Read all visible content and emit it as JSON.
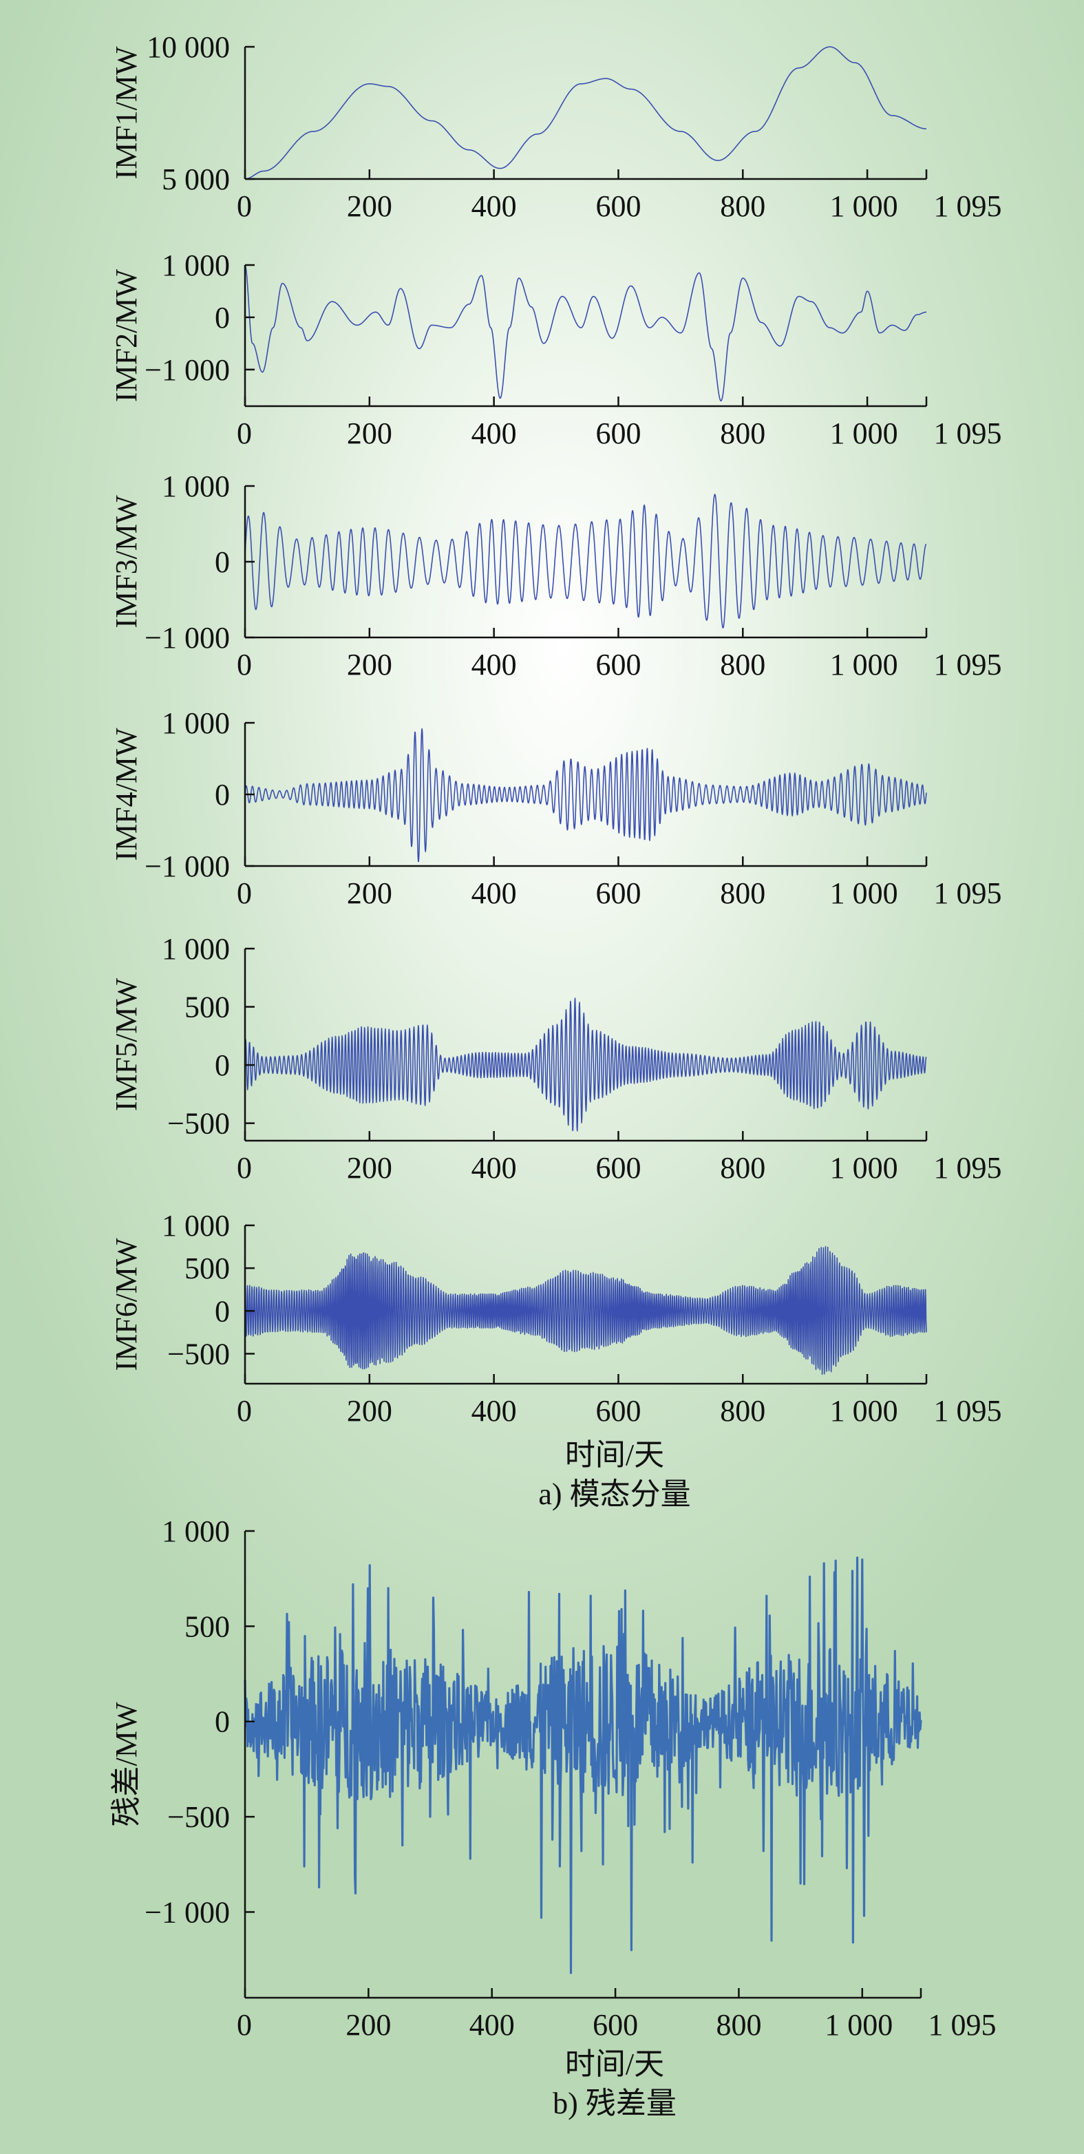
{
  "figure": {
    "xlabel_a": "时间/天",
    "caption_a": "a) 模态分量",
    "xlabel_b": "时间/天",
    "caption_b": "b) 残差量",
    "series_color_a": "#3a4fb0",
    "series_color_b": "#3d6fb5",
    "axis_color": "#111111"
  },
  "chart_data": [
    {
      "type": "line",
      "panel": "a",
      "ylabel": "IMF1/MW",
      "xlim": [
        0,
        1095
      ],
      "ylim": [
        5000,
        10000
      ],
      "xticks": [
        0,
        200,
        400,
        600,
        800,
        1000,
        1095
      ],
      "xtick_labels": [
        "0",
        "200",
        "400",
        "600",
        "800",
        "1 000",
        "1 095"
      ],
      "yticks": [
        5000,
        10000
      ],
      "ytick_labels": [
        "5 000",
        "10 000"
      ],
      "signal": {
        "kind": "keypoints",
        "points": [
          [
            0,
            5000
          ],
          [
            30,
            5300
          ],
          [
            110,
            6800
          ],
          [
            200,
            8600
          ],
          [
            230,
            8500
          ],
          [
            300,
            7200
          ],
          [
            360,
            6100
          ],
          [
            410,
            5400
          ],
          [
            470,
            6700
          ],
          [
            540,
            8600
          ],
          [
            580,
            8800
          ],
          [
            620,
            8400
          ],
          [
            700,
            6800
          ],
          [
            760,
            5700
          ],
          [
            820,
            6800
          ],
          [
            890,
            9200
          ],
          [
            940,
            10000
          ],
          [
            980,
            9400
          ],
          [
            1040,
            7400
          ],
          [
            1095,
            6900
          ]
        ]
      }
    },
    {
      "type": "line",
      "panel": "a",
      "ylabel": "IMF2/MW",
      "xlim": [
        0,
        1095
      ],
      "ylim": [
        -1700,
        1000
      ],
      "xticks": [
        0,
        200,
        400,
        600,
        800,
        1000,
        1095
      ],
      "xtick_labels": [
        "0",
        "200",
        "400",
        "600",
        "800",
        "1 000",
        "1 095"
      ],
      "yticks": [
        -1000,
        0,
        1000
      ],
      "ytick_labels": [
        "−1 000",
        "0",
        "1 000"
      ],
      "signal": {
        "kind": "keypoints",
        "points": [
          [
            0,
            1000
          ],
          [
            12,
            -500
          ],
          [
            28,
            -1050
          ],
          [
            45,
            -200
          ],
          [
            60,
            650
          ],
          [
            90,
            -200
          ],
          [
            100,
            -450
          ],
          [
            140,
            300
          ],
          [
            180,
            -150
          ],
          [
            210,
            100
          ],
          [
            230,
            -150
          ],
          [
            250,
            550
          ],
          [
            280,
            -600
          ],
          [
            300,
            -150
          ],
          [
            330,
            -200
          ],
          [
            360,
            250
          ],
          [
            380,
            800
          ],
          [
            395,
            -200
          ],
          [
            410,
            -1550
          ],
          [
            425,
            -200
          ],
          [
            440,
            750
          ],
          [
            460,
            200
          ],
          [
            480,
            -500
          ],
          [
            510,
            400
          ],
          [
            540,
            -200
          ],
          [
            560,
            400
          ],
          [
            590,
            -400
          ],
          [
            620,
            600
          ],
          [
            650,
            -200
          ],
          [
            670,
            0
          ],
          [
            700,
            -300
          ],
          [
            730,
            850
          ],
          [
            750,
            -600
          ],
          [
            765,
            -1600
          ],
          [
            780,
            -300
          ],
          [
            800,
            750
          ],
          [
            830,
            -100
          ],
          [
            860,
            -550
          ],
          [
            890,
            400
          ],
          [
            910,
            300
          ],
          [
            940,
            -200
          ],
          [
            960,
            -300
          ],
          [
            990,
            100
          ],
          [
            1000,
            500
          ],
          [
            1020,
            -300
          ],
          [
            1040,
            -150
          ],
          [
            1060,
            -250
          ],
          [
            1080,
            50
          ],
          [
            1095,
            100
          ]
        ]
      }
    },
    {
      "type": "line",
      "panel": "a",
      "ylabel": "IMF3/MW",
      "xlim": [
        0,
        1095
      ],
      "ylim": [
        -1000,
        1000
      ],
      "xticks": [
        0,
        200,
        400,
        600,
        800,
        1000,
        1095
      ],
      "xtick_labels": [
        "0",
        "200",
        "400",
        "600",
        "800",
        "1 000",
        "1 095"
      ],
      "yticks": [
        -1000,
        0,
        1000
      ],
      "ytick_labels": [
        "−1 000",
        "0",
        "1 000"
      ],
      "signal": {
        "kind": "oscillation",
        "period": 26,
        "envelope": [
          [
            0,
            600
          ],
          [
            30,
            650
          ],
          [
            80,
            300
          ],
          [
            200,
            450
          ],
          [
            320,
            280
          ],
          [
            400,
            560
          ],
          [
            500,
            480
          ],
          [
            600,
            560
          ],
          [
            640,
            750
          ],
          [
            700,
            300
          ],
          [
            760,
            900
          ],
          [
            790,
            750
          ],
          [
            850,
            480
          ],
          [
            950,
            330
          ],
          [
            1095,
            230
          ]
        ]
      }
    },
    {
      "type": "line",
      "panel": "a",
      "ylabel": "IMF4/MW",
      "xlim": [
        0,
        1095
      ],
      "ylim": [
        -1000,
        1000
      ],
      "xticks": [
        0,
        200,
        400,
        600,
        800,
        1000,
        1095
      ],
      "xtick_labels": [
        "0",
        "200",
        "400",
        "600",
        "800",
        "1 000",
        "1 095"
      ],
      "yticks": [
        -1000,
        0,
        1000
      ],
      "ytick_labels": [
        "−1 000",
        "0",
        "1 000"
      ],
      "signal": {
        "kind": "oscillation",
        "period": 11,
        "envelope": [
          [
            0,
            120
          ],
          [
            60,
            50
          ],
          [
            100,
            150
          ],
          [
            200,
            200
          ],
          [
            250,
            350
          ],
          [
            280,
            950
          ],
          [
            310,
            350
          ],
          [
            350,
            150
          ],
          [
            420,
            100
          ],
          [
            480,
            130
          ],
          [
            520,
            500
          ],
          [
            560,
            350
          ],
          [
            620,
            600
          ],
          [
            650,
            650
          ],
          [
            680,
            250
          ],
          [
            750,
            130
          ],
          [
            800,
            110
          ],
          [
            880,
            300
          ],
          [
            920,
            180
          ],
          [
            1000,
            430
          ],
          [
            1030,
            250
          ],
          [
            1095,
            130
          ]
        ]
      }
    },
    {
      "type": "line",
      "panel": "a",
      "ylabel": "IMF5/MW",
      "xlim": [
        0,
        1095
      ],
      "ylim": [
        -650,
        1000
      ],
      "xticks": [
        0,
        200,
        400,
        600,
        800,
        1000,
        1095
      ],
      "xtick_labels": [
        "0",
        "200",
        "400",
        "600",
        "800",
        "1 000",
        "1 095"
      ],
      "yticks": [
        -500,
        0,
        500,
        1000
      ],
      "ytick_labels": [
        "−500",
        "0",
        "500",
        "1 000"
      ],
      "signal": {
        "kind": "oscillation",
        "period": 7,
        "envelope": [
          [
            0,
            220
          ],
          [
            30,
            70
          ],
          [
            80,
            80
          ],
          [
            150,
            250
          ],
          [
            190,
            330
          ],
          [
            250,
            300
          ],
          [
            290,
            350
          ],
          [
            320,
            60
          ],
          [
            380,
            110
          ],
          [
            450,
            100
          ],
          [
            500,
            350
          ],
          [
            530,
            580
          ],
          [
            560,
            300
          ],
          [
            620,
            160
          ],
          [
            700,
            100
          ],
          [
            780,
            60
          ],
          [
            840,
            90
          ],
          [
            880,
            300
          ],
          [
            920,
            380
          ],
          [
            960,
            100
          ],
          [
            1000,
            380
          ],
          [
            1040,
            120
          ],
          [
            1095,
            70
          ]
        ]
      }
    },
    {
      "type": "line",
      "panel": "a",
      "ylabel": "IMF6/MW",
      "xlim": [
        0,
        1095
      ],
      "ylim": [
        -850,
        1000
      ],
      "xticks": [
        0,
        200,
        400,
        600,
        800,
        1000,
        1095
      ],
      "xtick_labels": [
        "0",
        "200",
        "400",
        "600",
        "800",
        "1 000",
        "1 095"
      ],
      "yticks": [
        -500,
        0,
        500,
        1000
      ],
      "ytick_labels": [
        "−500",
        "0",
        "500",
        "1 000"
      ],
      "signal": {
        "kind": "oscillation",
        "period": 4,
        "envelope": [
          [
            0,
            300
          ],
          [
            60,
            240
          ],
          [
            120,
            250
          ],
          [
            180,
            700
          ],
          [
            230,
            600
          ],
          [
            280,
            400
          ],
          [
            330,
            200
          ],
          [
            400,
            200
          ],
          [
            460,
            280
          ],
          [
            520,
            480
          ],
          [
            560,
            450
          ],
          [
            600,
            380
          ],
          [
            660,
            200
          ],
          [
            740,
            150
          ],
          [
            800,
            300
          ],
          [
            850,
            250
          ],
          [
            900,
            560
          ],
          [
            930,
            760
          ],
          [
            970,
            520
          ],
          [
            1000,
            200
          ],
          [
            1040,
            300
          ],
          [
            1095,
            250
          ]
        ]
      }
    },
    {
      "type": "line",
      "panel": "b",
      "ylabel": "残差/MW",
      "xlim": [
        0,
        1095
      ],
      "ylim": [
        -1450,
        1000
      ],
      "xticks": [
        0,
        200,
        400,
        600,
        800,
        1000,
        1095
      ],
      "xtick_labels": [
        "0",
        "200",
        "400",
        "600",
        "800",
        "1 000",
        "1 095"
      ],
      "yticks": [
        -1000,
        -500,
        0,
        500,
        1000
      ],
      "ytick_labels": [
        "−1 000",
        "−500",
        "0",
        "500",
        "1 000"
      ],
      "signal": {
        "kind": "noise",
        "spread": 130,
        "bursts": [
          0.6,
          0.85,
          0.7,
          0.65
        ],
        "spikes": [
          [
            96,
            -760
          ],
          [
            120,
            -870
          ],
          [
            150,
            -560
          ],
          [
            175,
            720
          ],
          [
            178,
            -810
          ],
          [
            232,
            700
          ],
          [
            255,
            -650
          ],
          [
            300,
            -500
          ],
          [
            305,
            650
          ],
          [
            365,
            -720
          ],
          [
            408,
            -100
          ],
          [
            460,
            680
          ],
          [
            480,
            -1030
          ],
          [
            498,
            -620
          ],
          [
            510,
            -760
          ],
          [
            528,
            -1320
          ],
          [
            545,
            -680
          ],
          [
            560,
            660
          ],
          [
            568,
            -480
          ],
          [
            580,
            -750
          ],
          [
            610,
            590
          ],
          [
            626,
            -1200
          ],
          [
            680,
            -580
          ],
          [
            725,
            -740
          ],
          [
            840,
            -680
          ],
          [
            845,
            660
          ],
          [
            853,
            -1150
          ],
          [
            900,
            -850
          ],
          [
            915,
            760
          ],
          [
            938,
            830
          ],
          [
            975,
            -770
          ],
          [
            985,
            -1160
          ],
          [
            992,
            860
          ],
          [
            1000,
            850
          ],
          [
            1003,
            -1020
          ],
          [
            1010,
            -600
          ]
        ]
      }
    }
  ]
}
